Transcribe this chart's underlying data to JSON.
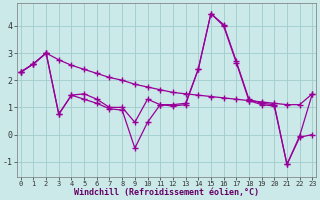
{
  "line1_x": [
    0,
    1,
    2,
    3,
    4,
    5,
    6,
    7,
    8,
    9,
    10,
    11,
    12,
    13,
    14,
    15,
    16,
    17,
    18,
    19,
    20,
    21,
    22,
    23
  ],
  "line1_y": [
    2.3,
    2.6,
    3.0,
    2.75,
    2.55,
    2.4,
    2.25,
    2.1,
    2.0,
    1.85,
    1.75,
    1.65,
    1.55,
    1.5,
    1.45,
    1.4,
    1.35,
    1.3,
    1.25,
    1.2,
    1.15,
    1.1,
    1.1,
    1.5
  ],
  "line2_x": [
    0,
    1,
    2,
    3,
    4,
    5,
    6,
    7,
    8,
    9,
    10,
    11,
    12,
    13,
    14,
    15,
    16,
    17,
    18,
    19,
    20,
    21,
    22,
    23
  ],
  "line2_y": [
    2.3,
    2.6,
    3.0,
    0.75,
    1.45,
    1.5,
    1.3,
    1.0,
    1.0,
    0.45,
    1.3,
    1.1,
    1.1,
    1.15,
    2.4,
    4.45,
    4.05,
    2.7,
    1.3,
    1.15,
    1.1,
    -1.1,
    -0.05,
    1.5
  ],
  "line3_x": [
    0,
    1,
    2,
    3,
    4,
    5,
    6,
    7,
    8,
    9,
    10,
    11,
    12,
    13,
    14,
    15,
    16,
    17,
    18,
    19,
    20,
    21,
    22,
    23
  ],
  "line3_y": [
    2.3,
    2.6,
    3.0,
    0.75,
    1.45,
    1.3,
    1.15,
    0.95,
    0.9,
    -0.5,
    0.45,
    1.1,
    1.05,
    1.1,
    2.4,
    4.45,
    4.0,
    2.65,
    1.25,
    1.1,
    1.05,
    -1.1,
    -0.1,
    0.0
  ],
  "line_color": "#990099",
  "bg_color": "#CBE9E9",
  "grid_color": "#A0CCCC",
  "xlabel": "Windchill (Refroidissement éolien,°C)",
  "xticks": [
    0,
    1,
    2,
    3,
    4,
    5,
    6,
    7,
    8,
    9,
    10,
    11,
    12,
    13,
    14,
    15,
    16,
    17,
    18,
    19,
    20,
    21,
    22,
    23
  ],
  "yticks": [
    -1,
    0,
    1,
    2,
    3,
    4
  ],
  "xlim": [
    -0.3,
    23.3
  ],
  "ylim": [
    -1.55,
    4.85
  ],
  "marker": "+",
  "markersize": 4,
  "linewidth": 0.9
}
